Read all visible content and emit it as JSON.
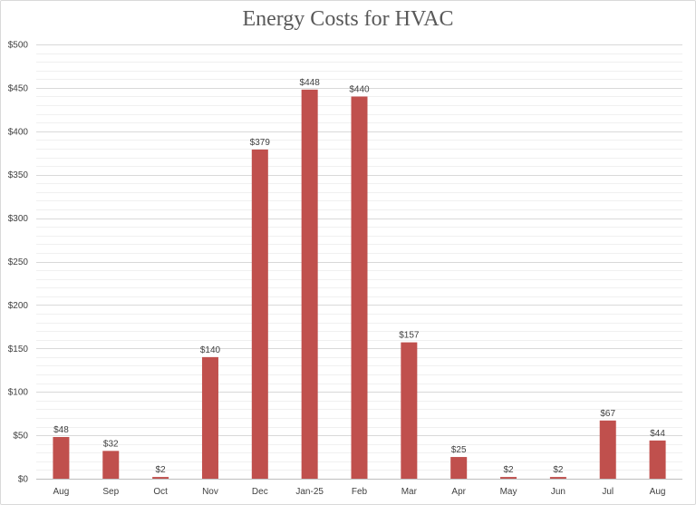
{
  "chart_data": {
    "type": "bar",
    "title": "Energy Costs for HVAC",
    "xlabel": "",
    "ylabel": "",
    "categories": [
      "Aug",
      "Sep",
      "Oct",
      "Nov",
      "Dec",
      "Jan-25",
      "Feb",
      "Mar",
      "Apr",
      "May",
      "Jun",
      "Jul",
      "Aug"
    ],
    "values": [
      48,
      32,
      2,
      140,
      379,
      448,
      440,
      157,
      25,
      2,
      2,
      67,
      44
    ],
    "data_labels": [
      "$48",
      "$32",
      "$2",
      "$140",
      "$379",
      "$448",
      "$440",
      "$157",
      "$25",
      "$2",
      "$2",
      "$67",
      "$44"
    ],
    "ylim": [
      0,
      500
    ],
    "major_ticks": [
      0,
      50,
      100,
      150,
      200,
      250,
      300,
      350,
      400,
      450,
      500
    ],
    "minor_step": 10,
    "y_tick_labels": [
      "$0",
      "$50",
      "$100",
      "$150",
      "$200",
      "$250",
      "$300",
      "$350",
      "$400",
      "$450",
      "$500"
    ],
    "bar_color": "#c0504d",
    "grid": true,
    "legend": "none"
  }
}
